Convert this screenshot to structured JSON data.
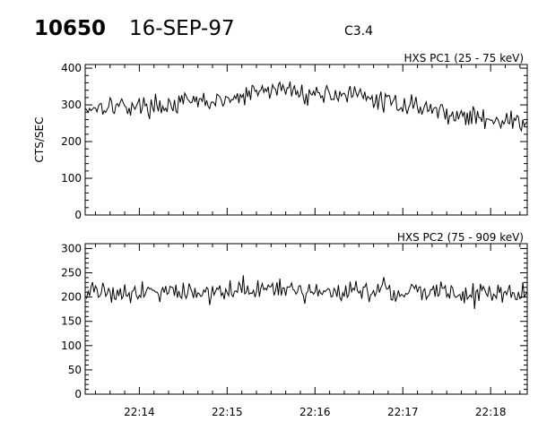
{
  "header": {
    "event_id": "10650",
    "date": "16-SEP-97",
    "flare_class": "C3.4"
  },
  "chart_data": [
    {
      "type": "line",
      "panel_label": "HXS PC1 (25 - 75 keV)",
      "ylabel": "CTS/SEC",
      "xlabel": "",
      "xlim": [
        "22:13:23",
        "22:18:25"
      ],
      "ylim": [
        0,
        410
      ],
      "y_ticks": [
        "0",
        "100",
        "200",
        "300",
        "400"
      ],
      "x_ticks": [
        "22:14",
        "22:15",
        "22:16",
        "22:17",
        "22:18"
      ],
      "grid": false,
      "series": [
        {
          "x": [
            "22:13:23",
            "22:13:38",
            "22:13:53",
            "22:14:08",
            "22:14:23",
            "22:14:38",
            "22:14:53",
            "22:15:08",
            "22:15:23",
            "22:15:38",
            "22:15:53",
            "22:16:08",
            "22:16:23",
            "22:16:38",
            "22:16:53",
            "22:17:08",
            "22:17:23",
            "22:17:38",
            "22:17:53",
            "22:18:08",
            "22:18:25"
          ],
          "values": [
            290,
            300,
            296,
            297,
            300,
            310,
            308,
            318,
            338,
            345,
            330,
            330,
            330,
            315,
            305,
            300,
            285,
            270,
            265,
            260,
            248
          ]
        }
      ]
    },
    {
      "type": "line",
      "panel_label": "HXS PC2 (75 - 909 keV)",
      "ylabel": "",
      "xlabel": "",
      "xlim": [
        "22:13:23",
        "22:18:25"
      ],
      "ylim": [
        0,
        310
      ],
      "y_ticks": [
        "0",
        "50",
        "100",
        "150",
        "200",
        "250",
        "300"
      ],
      "x_ticks": [
        "22:14",
        "22:15",
        "22:16",
        "22:17",
        "22:18"
      ],
      "grid": false,
      "series": [
        {
          "x": [
            "22:13:23",
            "22:13:38",
            "22:13:53",
            "22:14:08",
            "22:14:23",
            "22:14:38",
            "22:14:53",
            "22:15:08",
            "22:15:23",
            "22:15:38",
            "22:15:53",
            "22:16:08",
            "22:16:23",
            "22:16:38",
            "22:16:53",
            "22:17:08",
            "22:17:23",
            "22:17:38",
            "22:17:53",
            "22:18:08",
            "22:18:25"
          ],
          "values": [
            215,
            212,
            210,
            215,
            212,
            210,
            212,
            214,
            215,
            212,
            210,
            212,
            215,
            214,
            212,
            210,
            212,
            208,
            205,
            207,
            210
          ]
        }
      ]
    }
  ]
}
